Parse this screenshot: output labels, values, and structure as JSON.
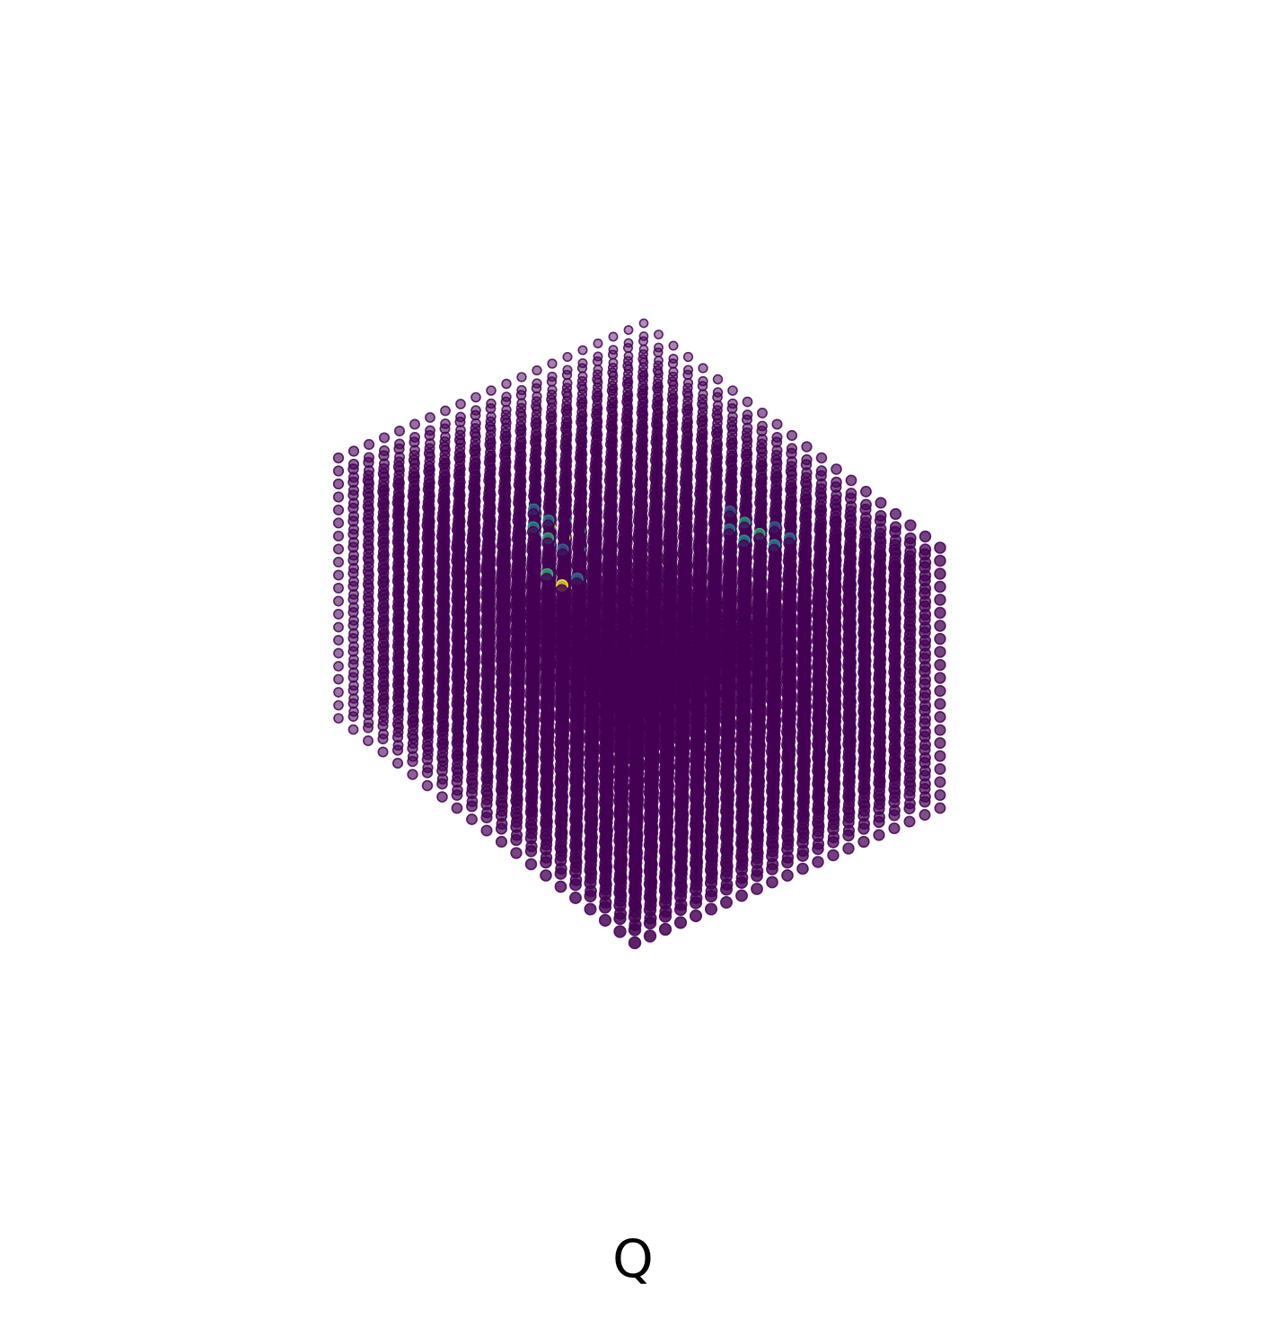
{
  "chart_data": {
    "type": "scatter",
    "projection": "3d",
    "title": "Q",
    "axes_visible": false,
    "grid": false,
    "grid_points_per_axis": 21,
    "xlim": [
      0,
      20
    ],
    "ylim": [
      0,
      20
    ],
    "zlim": [
      0,
      20
    ],
    "colormap": "viridis",
    "value_range": [
      0,
      1
    ],
    "base_value": 0,
    "colors": {
      "base": "#440154",
      "low": "#3b528b",
      "mid": "#21918c",
      "high": "#5ec962",
      "peak": "#fde725"
    },
    "highlight_points": [
      {
        "x": 4,
        "y": 10,
        "z": 13,
        "value": 0.92
      },
      {
        "x": 5,
        "y": 10,
        "z": 13,
        "value": 0.88
      },
      {
        "x": 4,
        "y": 9,
        "z": 13,
        "value": 0.55
      },
      {
        "x": 6,
        "y": 10,
        "z": 13,
        "value": 0.5
      },
      {
        "x": 5,
        "y": 11,
        "z": 13,
        "value": 0.45
      },
      {
        "x": 4,
        "y": 11,
        "z": 13,
        "value": 0.4
      },
      {
        "x": 3,
        "y": 10,
        "z": 13,
        "value": 0.35
      },
      {
        "x": 5,
        "y": 9,
        "z": 13,
        "value": 0.3
      },
      {
        "x": 12,
        "y": 3,
        "z": 19,
        "value": 0.97
      },
      {
        "x": 11,
        "y": 3,
        "z": 19,
        "value": 0.6
      },
      {
        "x": 12,
        "y": 4,
        "z": 19,
        "value": 0.35
      },
      {
        "x": 9,
        "y": 5,
        "z": 19,
        "value": 0.58
      },
      {
        "x": 8,
        "y": 5,
        "z": 19,
        "value": 0.5
      },
      {
        "x": 8,
        "y": 6,
        "z": 19,
        "value": 0.45
      },
      {
        "x": 7,
        "y": 6,
        "z": 19,
        "value": 0.4
      },
      {
        "x": 10,
        "y": 5,
        "z": 19,
        "value": 0.3
      },
      {
        "x": 14,
        "y": 14,
        "z": 19,
        "value": 0.6
      },
      {
        "x": 13,
        "y": 14,
        "z": 19,
        "value": 0.55
      },
      {
        "x": 14,
        "y": 13,
        "z": 19,
        "value": 0.5
      },
      {
        "x": 15,
        "y": 14,
        "z": 19,
        "value": 0.48
      },
      {
        "x": 13,
        "y": 13,
        "z": 19,
        "value": 0.4
      },
      {
        "x": 15,
        "y": 15,
        "z": 19,
        "value": 0.35
      },
      {
        "x": 14,
        "y": 15,
        "z": 19,
        "value": 0.3
      },
      {
        "x": 12,
        "y": 14,
        "z": 19,
        "value": 0.28
      }
    ]
  }
}
